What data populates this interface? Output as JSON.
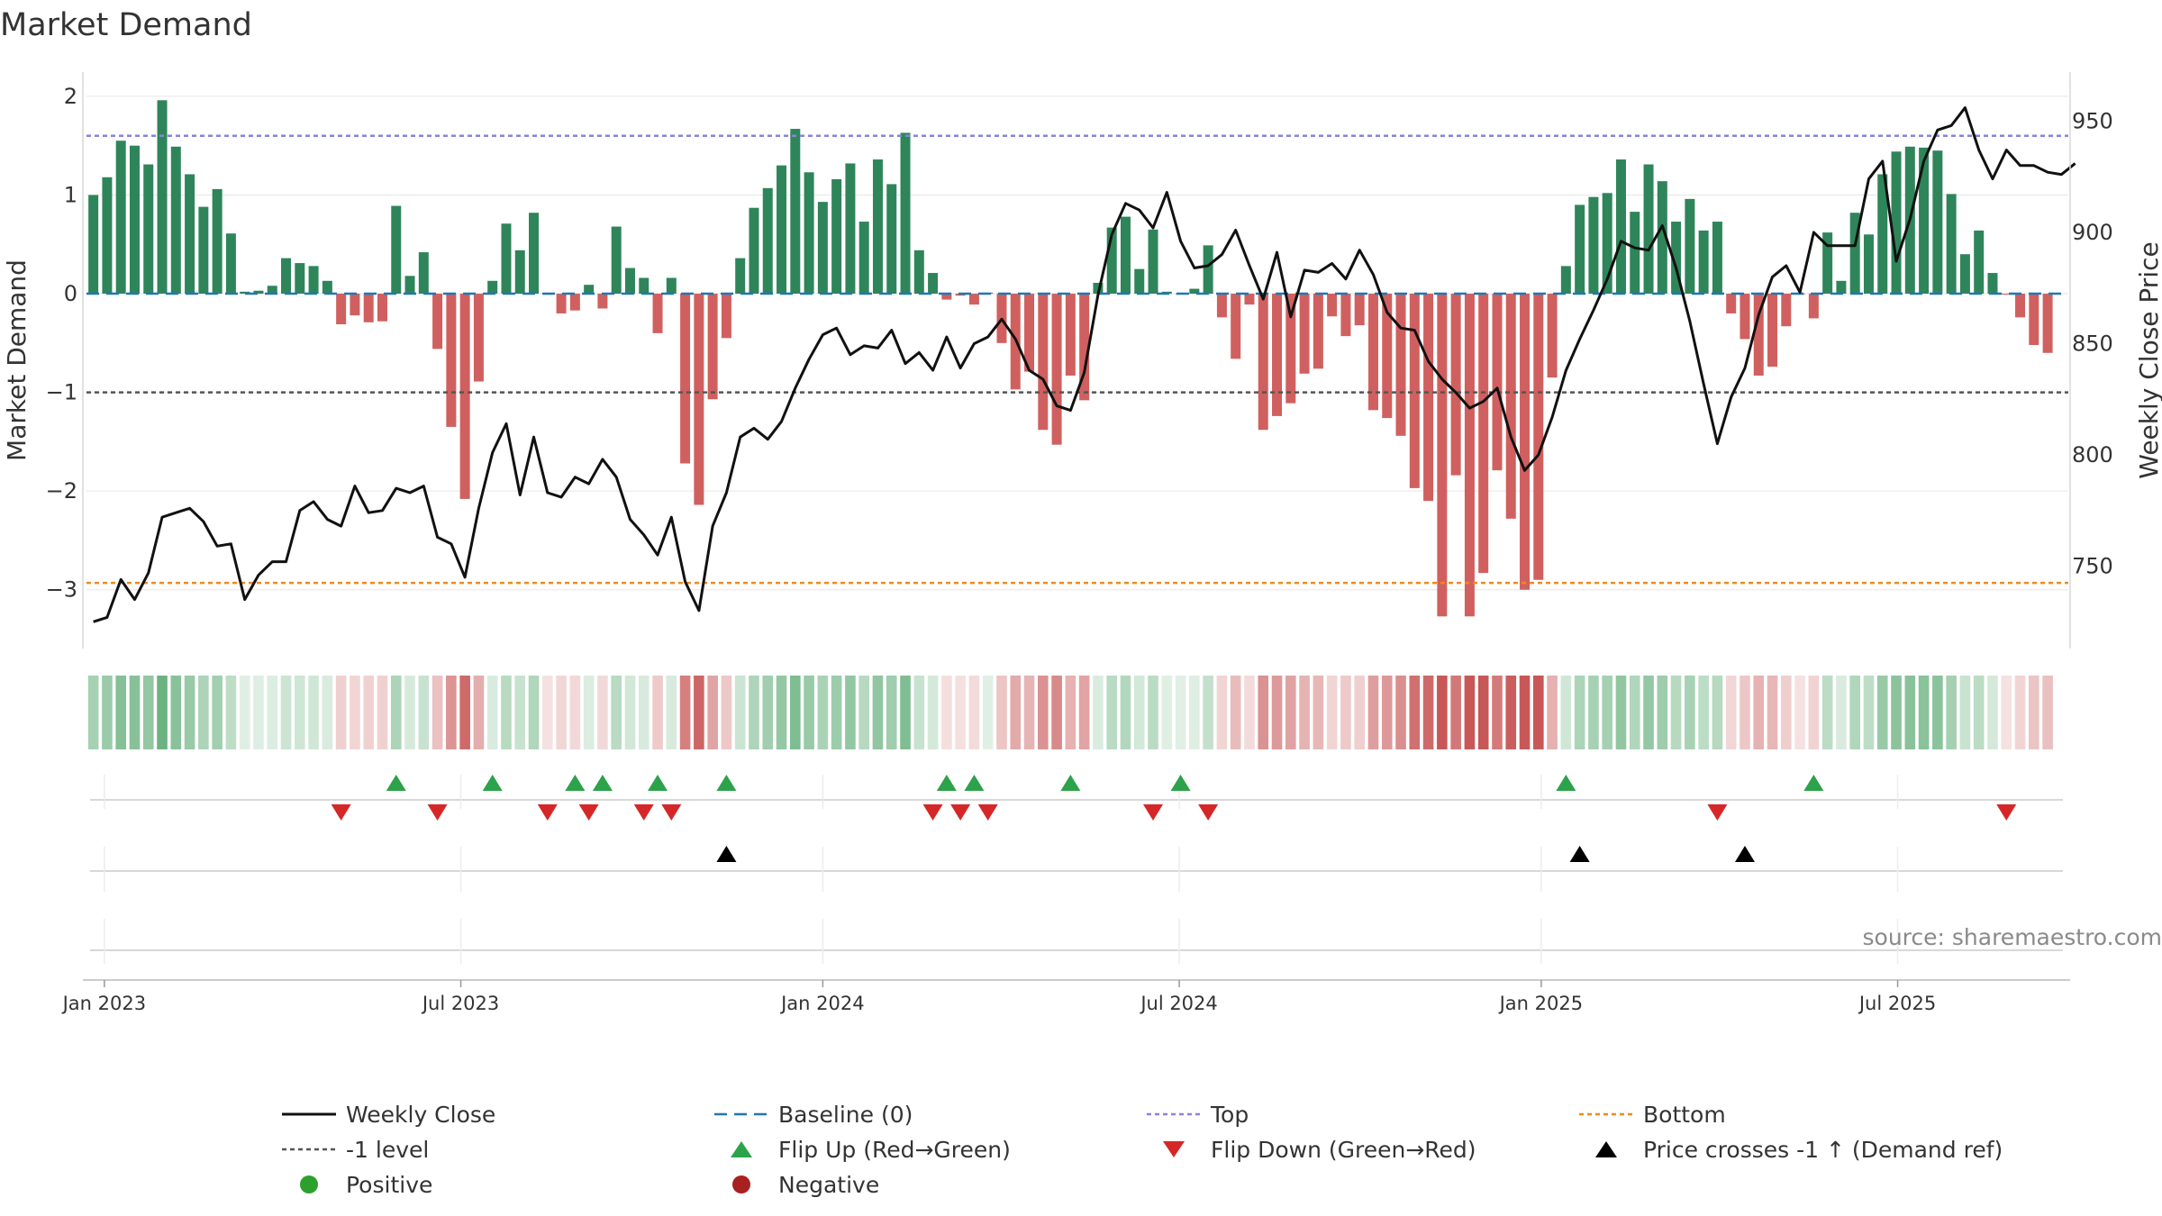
{
  "chart_data": {
    "type": "bar",
    "title": "Market Demand",
    "ylabel": "Market Demand",
    "y2label": "Weekly Close Price",
    "ylim": [
      -3.55,
      2.2
    ],
    "y2lim": [
      715,
      970
    ],
    "yticks": [
      2,
      1,
      0,
      -1,
      -2,
      -3
    ],
    "ytick_labels": [
      "2",
      "1",
      "0",
      "−1",
      "−2",
      "−3"
    ],
    "y2ticks": [
      950,
      900,
      850,
      800,
      750
    ],
    "y2tick_labels": [
      "950",
      "900",
      "850",
      "800",
      "750"
    ],
    "xticks": [
      {
        "label": "Jan 2023",
        "week": 0.8
      },
      {
        "label": "Jul 2023",
        "week": 26.7
      },
      {
        "label": "Jan 2024",
        "week": 53.0
      },
      {
        "label": "Jul 2024",
        "week": 78.9
      },
      {
        "label": "Jan 2025",
        "week": 105.2
      },
      {
        "label": "Jul 2025",
        "week": 131.1
      }
    ],
    "reference_lines": {
      "top": 1.6,
      "minus_one": -1,
      "bottom": -2.93,
      "baseline": 0
    },
    "weeks": 144,
    "demand": [
      1.0,
      1.18,
      1.55,
      1.5,
      1.31,
      1.96,
      1.49,
      1.21,
      0.88,
      1.06,
      0.61,
      0.02,
      0.03,
      0.08,
      0.36,
      0.31,
      0.28,
      0.13,
      -0.31,
      -0.22,
      -0.29,
      -0.28,
      0.89,
      0.18,
      0.42,
      -0.56,
      -1.35,
      -2.08,
      -0.89,
      0.13,
      0.71,
      0.44,
      0.82,
      -0.01,
      -0.2,
      -0.17,
      0.09,
      -0.15,
      0.68,
      0.26,
      0.16,
      -0.4,
      0.16,
      -1.72,
      -2.14,
      -1.07,
      -0.45,
      0.36,
      0.87,
      1.07,
      1.3,
      1.67,
      1.23,
      0.93,
      1.16,
      1.32,
      0.73,
      1.36,
      1.11,
      1.63,
      0.44,
      0.21,
      -0.06,
      -0.02,
      -0.11,
      0.01,
      -0.5,
      -0.97,
      -0.79,
      -1.38,
      -1.53,
      -0.83,
      -1.08,
      0.11,
      0.67,
      0.78,
      0.25,
      0.65,
      0.02,
      0.0,
      0.05,
      0.49,
      -0.24,
      -0.66,
      -0.11,
      -1.38,
      -1.24,
      -1.11,
      -0.81,
      -0.76,
      -0.23,
      -0.43,
      -0.32,
      -1.18,
      -1.26,
      -1.44,
      -1.97,
      -2.1,
      -3.27,
      -1.84,
      -3.27,
      -2.83,
      -1.79,
      -2.28,
      -3.0,
      -2.9,
      -0.85,
      0.28,
      0.9,
      0.98,
      1.02,
      1.36,
      0.83,
      1.31,
      1.14,
      0.73,
      0.96,
      0.64,
      0.73,
      -0.2,
      -0.46,
      -0.83,
      -0.74,
      -0.33,
      -0.01,
      -0.25,
      0.62,
      0.13,
      0.82,
      0.6,
      1.21,
      1.44,
      1.49,
      1.48,
      1.45,
      1.01,
      0.4,
      0.64,
      0.21,
      -0.01,
      -0.24,
      -0.52,
      -0.6
    ],
    "weekly_close": [
      725,
      727,
      744,
      735,
      747,
      772,
      774,
      776,
      770,
      759,
      760,
      735,
      746,
      752,
      752,
      775,
      779,
      771,
      768,
      786,
      774,
      775,
      785,
      783,
      786,
      763,
      760,
      745,
      776,
      801,
      814,
      782,
      808,
      783,
      781,
      790,
      787,
      798,
      790,
      771,
      764,
      755,
      772,
      743,
      730,
      768,
      783,
      808,
      812,
      807,
      815,
      830,
      843,
      854,
      857,
      845,
      849,
      848,
      856,
      841,
      846,
      838,
      853,
      839,
      850,
      853,
      861,
      852,
      838,
      834,
      822,
      820,
      837,
      872,
      899,
      913,
      910,
      902,
      918,
      896,
      884,
      885,
      890,
      901,
      885,
      870,
      891,
      862,
      883,
      882,
      886,
      879,
      892,
      881,
      864,
      857,
      856,
      842,
      834,
      828,
      821,
      824,
      830,
      808,
      793,
      800,
      817,
      838,
      852,
      865,
      879,
      896,
      893,
      892,
      903,
      884,
      860,
      832,
      805,
      826,
      839,
      863,
      880,
      885,
      873,
      900,
      894,
      894,
      894,
      924,
      932,
      887,
      906,
      932,
      946,
      948,
      956,
      937,
      924,
      937,
      930,
      930,
      927,
      926,
      931
    ],
    "band_rgb": {
      "green": [
        53,
        150,
        82
      ],
      "red": [
        190,
        58,
        58
      ]
    },
    "flip_up_weeks": [
      22,
      29,
      35,
      37,
      41,
      46,
      62,
      64,
      71,
      79,
      107,
      125
    ],
    "flip_down_weeks": [
      18,
      25,
      33,
      36,
      40,
      42,
      61,
      63,
      65,
      77,
      81,
      118,
      139
    ],
    "cross_up_weeks": [
      46,
      108,
      120
    ],
    "legend": [
      {
        "label": "Weekly Close",
        "marker": "line",
        "color": "#111111"
      },
      {
        "label": "Baseline (0)",
        "marker": "dash",
        "color": "#1f77b4"
      },
      {
        "label": "Top",
        "marker": "dot",
        "color": "#8884d8"
      },
      {
        "label": "Bottom",
        "marker": "dot",
        "color": "#ee8a1c"
      },
      {
        "label": "-1 level",
        "marker": "dot",
        "color": "#555555"
      },
      {
        "label": "Flip Up (Red→Green)",
        "marker": "tri-up",
        "color": "#2ca24a"
      },
      {
        "label": "Flip Down (Green→Red)",
        "marker": "tri-down",
        "color": "#d62728"
      },
      {
        "label": "Price crosses -1 ↑ (Demand ref)",
        "marker": "tri-up",
        "color": "#000000"
      },
      {
        "label": "Positive",
        "marker": "circle",
        "color": "#2ca02c"
      },
      {
        "label": "Negative",
        "marker": "circle",
        "color": "#a82020"
      }
    ],
    "source": "source: sharemaestro.com"
  },
  "colors": {
    "positive_bar": "#2f855a",
    "negative_bar": "#d0605f",
    "top_line": "#8884d8",
    "bottom_line": "#ee8a1c",
    "minus_one_line": "#555555",
    "baseline": "#1f77b4",
    "price_line": "#111111",
    "grid": "#e6e6e6"
  }
}
